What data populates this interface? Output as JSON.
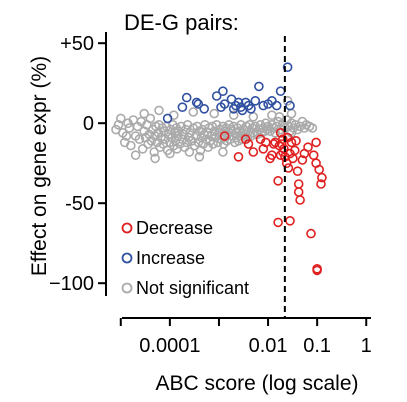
{
  "chart_data": {
    "type": "scatter",
    "title": "DE-G pairs:",
    "xlabel": "ABC score (log scale)",
    "ylabel": "Effect on gene expr (%)",
    "x_scale": "log",
    "xlim": [
      5e-06,
      1.25
    ],
    "ylim": [
      -108,
      57
    ],
    "x_ticks": [
      {
        "value": 0.0001,
        "label": "0.0001"
      },
      {
        "value": 0.01,
        "label": "0.01"
      },
      {
        "value": 0.1,
        "label": "0.1"
      },
      {
        "value": 1,
        "label": "1"
      }
    ],
    "y_ticks": [
      {
        "value": 50,
        "label": "+50"
      },
      {
        "value": 0,
        "label": "0"
      },
      {
        "value": -50,
        "label": "-50"
      },
      {
        "value": -100,
        "label": "−100"
      }
    ],
    "threshold_line": {
      "x": 0.022,
      "style": "dashed"
    },
    "legend": {
      "position": "bottom-left",
      "entries": [
        {
          "label": "Decrease",
          "color": "#e02020"
        },
        {
          "label": "Increase",
          "color": "#3050a0"
        },
        {
          "label": "Not significant",
          "color": "#aaaaaa"
        }
      ]
    },
    "series": [
      {
        "name": "Not significant",
        "color": "#aaaaaa",
        "points": [
          [
            8e-06,
            -4
          ],
          [
            9e-06,
            -1
          ],
          [
            1e-05,
            3
          ],
          [
            1.1e-05,
            -6
          ],
          [
            1.2e-05,
            -12
          ],
          [
            1.3e-05,
            -8
          ],
          [
            1.4e-05,
            0
          ],
          [
            1.5e-05,
            -3
          ],
          [
            1.6e-05,
            -14
          ],
          [
            1.8e-05,
            2
          ],
          [
            2e-05,
            -8
          ],
          [
            2.2e-05,
            -2
          ],
          [
            2.4e-05,
            -10
          ],
          [
            2.6e-05,
            1
          ],
          [
            2.8e-05,
            -16
          ],
          [
            3e-05,
            -5
          ],
          [
            3.2e-05,
            -9
          ],
          [
            3.4e-05,
            -1
          ],
          [
            3.6e-05,
            -13
          ],
          [
            3.8e-05,
            -7
          ],
          [
            4e-05,
            3
          ],
          [
            4.2e-05,
            -11
          ],
          [
            4.5e-05,
            -4
          ],
          [
            4.8e-05,
            -18
          ],
          [
            5e-05,
            -8
          ],
          [
            5.2e-05,
            -2
          ],
          [
            5.5e-05,
            -12
          ],
          [
            5.8e-05,
            -6
          ],
          [
            6e-05,
            -1
          ],
          [
            6.3e-05,
            -15
          ],
          [
            6.6e-05,
            -9
          ],
          [
            7e-05,
            -3
          ],
          [
            7.3e-05,
            -13
          ],
          [
            7.6e-05,
            -5
          ],
          [
            8e-05,
            -10
          ],
          [
            8.5e-05,
            -2
          ],
          [
            9e-05,
            -17
          ],
          [
            9.5e-05,
            -7
          ],
          [
            0.0001,
            -12
          ],
          [
            0.000105,
            -4
          ],
          [
            0.00011,
            -9
          ],
          [
            0.000115,
            -1
          ],
          [
            0.00012,
            -14
          ],
          [
            0.000125,
            -6
          ],
          [
            0.00013,
            -11
          ],
          [
            0.000135,
            -3
          ],
          [
            0.00014,
            -16
          ],
          [
            0.000145,
            -8
          ],
          [
            0.00015,
            -5
          ],
          [
            0.00016,
            -13
          ],
          [
            0.00017,
            -2
          ],
          [
            0.00018,
            -10
          ],
          [
            0.00019,
            -7
          ],
          [
            0.0002,
            -15
          ],
          [
            0.00021,
            -4
          ],
          [
            0.00022,
            -12
          ],
          [
            0.00023,
            -1
          ],
          [
            0.00024,
            -9
          ],
          [
            0.00025,
            -18
          ],
          [
            0.00026,
            -6
          ],
          [
            0.00028,
            -11
          ],
          [
            0.0003,
            -3
          ],
          [
            0.00032,
            -14
          ],
          [
            0.00034,
            -8
          ],
          [
            0.00036,
            -2
          ],
          [
            0.00038,
            -12
          ],
          [
            0.0004,
            -5
          ],
          [
            0.00042,
            -17
          ],
          [
            0.00044,
            -9
          ],
          [
            0.00046,
            -4
          ],
          [
            0.00048,
            -13
          ],
          [
            0.0005,
            -7
          ],
          [
            0.00052,
            -1
          ],
          [
            0.00055,
            -10
          ],
          [
            0.00058,
            -6
          ],
          [
            0.0006,
            -15
          ],
          [
            0.00063,
            -3
          ],
          [
            0.00066,
            -11
          ],
          [
            0.0007,
            -8
          ],
          [
            0.00073,
            -2
          ],
          [
            0.00076,
            -13
          ],
          [
            0.0008,
            -5
          ],
          [
            0.00085,
            -9
          ],
          [
            0.0009,
            -1
          ],
          [
            0.00095,
            -12
          ],
          [
            0.001,
            -6
          ],
          [
            0.00105,
            -4
          ],
          [
            0.0011,
            -10
          ],
          [
            0.00115,
            -7
          ],
          [
            0.0012,
            -2
          ],
          [
            0.00125,
            -13
          ],
          [
            0.0013,
            -5
          ],
          [
            0.00135,
            -9
          ],
          [
            0.0014,
            -3
          ],
          [
            0.00145,
            -11
          ],
          [
            0.0015,
            -7
          ],
          [
            0.0016,
            -1
          ],
          [
            0.0017,
            -10
          ],
          [
            0.0018,
            -4
          ],
          [
            0.0019,
            -8
          ],
          [
            0.002,
            -2
          ],
          [
            0.0021,
            -12
          ],
          [
            0.0022,
            -6
          ],
          [
            0.0023,
            -9
          ],
          [
            0.0024,
            -3
          ],
          [
            0.0025,
            -11
          ],
          [
            0.0026,
            -5
          ],
          [
            0.0027,
            -8
          ],
          [
            0.0028,
            -1
          ],
          [
            0.003,
            -10
          ],
          [
            0.0032,
            -4
          ],
          [
            0.0034,
            -7
          ],
          [
            0.0036,
            -2
          ],
          [
            0.0038,
            -9
          ],
          [
            0.004,
            -5
          ],
          [
            0.0042,
            -1
          ],
          [
            0.0045,
            -8
          ],
          [
            0.0048,
            -3
          ],
          [
            0.005,
            -6
          ],
          [
            0.0055,
            -2
          ],
          [
            0.006,
            -7
          ],
          [
            0.0065,
            -4
          ],
          [
            0.007,
            -1
          ],
          [
            0.0075,
            -6
          ],
          [
            0.008,
            -3
          ],
          [
            0.0085,
            -5
          ],
          [
            0.009,
            0
          ],
          [
            0.0095,
            -4
          ],
          [
            0.01,
            -2
          ],
          [
            0.011,
            -5
          ],
          [
            0.012,
            -1
          ],
          [
            0.013,
            -3
          ],
          [
            0.014,
            -6
          ],
          [
            0.015,
            -2
          ],
          [
            0.016,
            1
          ],
          [
            0.018,
            -4
          ],
          [
            0.02,
            -1
          ],
          [
            0.022,
            -3
          ],
          [
            0.024,
            2
          ],
          [
            0.026,
            -2
          ],
          [
            0.028,
            -5
          ],
          [
            0.03,
            0
          ],
          [
            0.033,
            -3
          ],
          [
            0.036,
            -1
          ],
          [
            0.04,
            -4
          ],
          [
            0.045,
            -2
          ],
          [
            0.05,
            1
          ],
          [
            0.055,
            -3
          ],
          [
            0.06,
            -1
          ],
          [
            0.07,
            -2
          ],
          [
            3e-05,
            6
          ],
          [
            6e-05,
            8
          ],
          [
            0.00012,
            5
          ],
          [
            0.0003,
            7
          ],
          [
            0.0008,
            6
          ],
          [
            0.002,
            5
          ],
          [
            0.005,
            4
          ],
          [
            0.012,
            5
          ],
          [
            0.03,
            6
          ],
          [
            2e-05,
            -20
          ],
          [
            5e-05,
            -22
          ],
          [
            0.0001,
            -19
          ],
          [
            0.0004,
            -21
          ],
          [
            0.0012,
            -18
          ],
          [
            0.025,
            14
          ],
          [
            0.017,
            4
          ],
          [
            0.03,
            -6
          ],
          [
            0.08,
            -3
          ]
        ]
      },
      {
        "name": "Increase",
        "color": "#3050a0",
        "points": [
          [
            9e-05,
            3
          ],
          [
            0.00022,
            16
          ],
          [
            0.00035,
            13
          ],
          [
            0.00038,
            12
          ],
          [
            0.0009,
            17
          ],
          [
            0.0011,
            10
          ],
          [
            0.0013,
            12
          ],
          [
            0.0018,
            15
          ],
          [
            0.002,
            9
          ],
          [
            0.0022,
            11
          ],
          [
            0.0025,
            13
          ],
          [
            0.0028,
            10
          ],
          [
            0.003,
            8
          ],
          [
            0.0035,
            13
          ],
          [
            0.004,
            11
          ],
          [
            0.0045,
            9
          ],
          [
            0.0055,
            14
          ],
          [
            0.0065,
            23
          ],
          [
            0.008,
            11
          ],
          [
            0.01,
            12
          ],
          [
            0.012,
            14
          ],
          [
            0.015,
            11
          ],
          [
            0.018,
            20
          ],
          [
            0.025,
            35
          ],
          [
            0.028,
            11
          ],
          [
            0.00018,
            10
          ],
          [
            0.0005,
            9
          ],
          [
            0.0012,
            20
          ]
        ]
      },
      {
        "name": "Decrease",
        "color": "#e02020",
        "points": [
          [
            0.0013,
            -8
          ],
          [
            0.0025,
            -21
          ],
          [
            0.0035,
            -10
          ],
          [
            0.004,
            -13
          ],
          [
            0.005,
            -18
          ],
          [
            0.007,
            -10
          ],
          [
            0.008,
            -16
          ],
          [
            0.009,
            -12
          ],
          [
            0.011,
            -22
          ],
          [
            0.012,
            -20
          ],
          [
            0.013,
            -13
          ],
          [
            0.014,
            -12
          ],
          [
            0.016,
            -36
          ],
          [
            0.017,
            -14
          ],
          [
            0.018,
            -20
          ],
          [
            0.019,
            -13
          ],
          [
            0.02,
            -10
          ],
          [
            0.021,
            -16
          ],
          [
            0.022,
            -21
          ],
          [
            0.024,
            -25
          ],
          [
            0.025,
            -9
          ],
          [
            0.026,
            -28
          ],
          [
            0.028,
            -19
          ],
          [
            0.03,
            -12
          ],
          [
            0.032,
            -22
          ],
          [
            0.035,
            -17
          ],
          [
            0.037,
            -11
          ],
          [
            0.04,
            -30
          ],
          [
            0.042,
            -38
          ],
          [
            0.045,
            -48
          ],
          [
            0.05,
            -23
          ],
          [
            0.055,
            -19
          ],
          [
            0.065,
            -15
          ],
          [
            0.075,
            -69
          ],
          [
            0.085,
            -20
          ],
          [
            0.095,
            -12
          ],
          [
            0.1,
            -91
          ],
          [
            0.11,
            -29
          ],
          [
            0.12,
            -38
          ],
          [
            0.125,
            -34
          ],
          [
            0.016,
            -62
          ],
          [
            0.028,
            -61
          ],
          [
            0.02,
            -18
          ],
          [
            0.018,
            -6
          ],
          [
            0.042,
            -43
          ],
          [
            0.1,
            -92
          ],
          [
            0.095,
            -25
          ]
        ]
      }
    ]
  }
}
